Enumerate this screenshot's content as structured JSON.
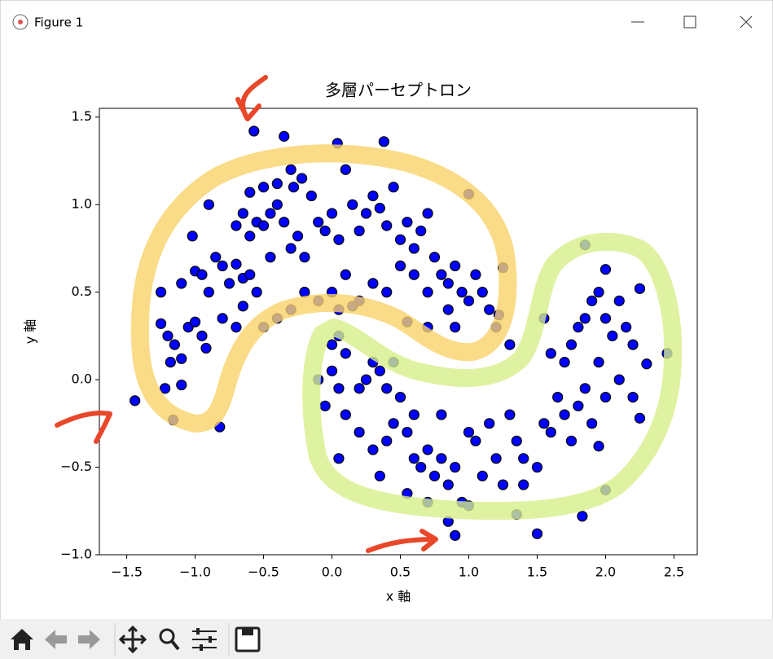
{
  "window_title": "Figure 1",
  "chart_data": {
    "type": "scatter",
    "title": "多層パーセプトロン",
    "x_label": "x 軸",
    "y_label": "y 軸",
    "color": "#0000ff",
    "edgecolor": "#000000",
    "xlim": [
      -1.7,
      2.67
    ],
    "ylim": [
      -1.0,
      1.55
    ],
    "xticks": [
      {
        "value": -1.5,
        "label": "−1.5"
      },
      {
        "value": -1,
        "label": "−1.0"
      },
      {
        "value": -0.5,
        "label": "−0.5"
      },
      {
        "value": 0,
        "label": "0.0"
      },
      0.5,
      {
        "value": 1,
        "label": "1.0"
      },
      1.5,
      {
        "value": 2,
        "label": "2.0"
      },
      2.5
    ],
    "yticks": [
      {
        "value": -1,
        "label": "−1.0"
      },
      {
        "value": -0.5,
        "label": "−0.5"
      },
      {
        "value": 0,
        "label": "0.0"
      },
      0.5,
      {
        "value": 1,
        "label": "1.0"
      },
      1.5
    ],
    "x": [
      -1.25,
      -1.2,
      -1.15,
      -1.18,
      -1.1,
      -1.05,
      -1.0,
      -0.95,
      -0.92,
      -1.1,
      -1.0,
      -0.95,
      -1.02,
      -0.9,
      -0.85,
      -0.8,
      -0.75,
      -0.7,
      -0.65,
      -0.6,
      -0.55,
      -0.7,
      -0.65,
      -0.6,
      -0.55,
      -0.5,
      -0.45,
      -0.4,
      -0.35,
      -0.3,
      -0.25,
      -0.2,
      -0.45,
      -0.5,
      -0.6,
      -0.4,
      -0.28,
      -0.22,
      -0.15,
      -0.1,
      -0.05,
      0,
      0.05,
      0.1,
      0.15,
      0.2,
      0.25,
      0.3,
      0.35,
      0.4,
      0.45,
      0.5,
      0.55,
      0.6,
      0.65,
      0.7,
      0.75,
      0.8,
      0.85,
      0.9,
      0.95,
      1.0,
      1.05,
      1.1,
      1.15,
      1.2,
      0.9,
      0.85,
      0.7,
      0.6,
      0.5,
      0.4,
      0.3,
      0.2,
      0.1,
      0,
      -0.1,
      -0.2,
      -0.3,
      -0.4,
      -0.5,
      -0.65,
      -0.7,
      -0.8,
      -0.82,
      -1.16,
      -1.44,
      -0.57,
      -0.35,
      0.04,
      0.38,
      -0.9,
      1.0,
      1.25,
      1.22,
      0.7,
      0.55,
      0.05,
      0.15,
      -1.22,
      -1.1,
      -1.25,
      -0.3,
      0,
      0.05,
      0.1,
      0,
      0.05,
      -0.05,
      -0.1,
      0.1,
      0.05,
      0.2,
      0.3,
      0.35,
      0.4,
      0.45,
      0.5,
      0.3,
      0.35,
      0.4,
      0.45,
      0.55,
      0.6,
      0.55,
      0.65,
      0.7,
      0.75,
      0.8,
      0.85,
      0.9,
      0.95,
      1.0,
      1.05,
      1.1,
      1.15,
      1.2,
      1.3,
      1.35,
      1.4,
      1.5,
      1.55,
      1.6,
      1.65,
      1.7,
      1.75,
      1.8,
      1.85,
      1.9,
      1.95,
      2.0,
      1.7,
      1.75,
      1.8,
      1.85,
      1.9,
      1.95,
      2.0,
      2.05,
      2.1,
      2.15,
      2.2,
      1.6,
      1.55,
      1.95,
      2.1,
      2.2,
      1.25,
      0.9,
      0.85,
      1.5,
      2.45,
      1.85,
      2.0,
      2.25,
      2.3,
      1.83,
      2.0,
      1.35,
      1.3,
      0.7,
      1.0,
      0.2,
      0.25,
      0.6,
      0.8,
      1.4,
      2.25
    ],
    "values": [
      0.32,
      0.25,
      0.2,
      0.1,
      0.12,
      0.3,
      0.33,
      0.25,
      0.18,
      0.55,
      0.62,
      0.6,
      0.82,
      0.5,
      0.7,
      0.65,
      0.55,
      0.66,
      0.58,
      0.6,
      0.5,
      0.88,
      0.95,
      0.82,
      0.9,
      0.88,
      0.95,
      1.0,
      0.9,
      0.75,
      0.82,
      0.7,
      0.7,
      1.1,
      1.07,
      1.12,
      1.1,
      1.15,
      1.05,
      0.9,
      0.85,
      0.95,
      0.8,
      1.2,
      1.0,
      0.85,
      0.95,
      1.05,
      0.98,
      0.88,
      1.1,
      0.8,
      0.9,
      0.75,
      0.85,
      0.95,
      0.7,
      0.6,
      0.55,
      0.65,
      0.5,
      0.45,
      0.6,
      0.5,
      0.4,
      0.3,
      0.3,
      0.4,
      0.5,
      0.6,
      0.65,
      0.5,
      0.55,
      0.45,
      0.6,
      0.5,
      0.45,
      0.5,
      0.4,
      0.35,
      0.3,
      0.42,
      0.3,
      0.35,
      -0.27,
      -0.23,
      -0.12,
      1.42,
      1.39,
      1.35,
      1.36,
      1.0,
      1.06,
      0.64,
      0.37,
      0.3,
      0.33,
      0.4,
      0.42,
      -0.05,
      -0.03,
      0.5,
      1.2,
      0.2,
      0.25,
      0.15,
      0.05,
      -0.05,
      -0.15,
      0,
      -0.2,
      -0.45,
      -0.3,
      0.1,
      0.05,
      -0.05,
      0.1,
      -0.1,
      -0.4,
      -0.55,
      -0.35,
      -0.25,
      -0.3,
      -0.45,
      -0.65,
      -0.5,
      -0.4,
      -0.55,
      -0.45,
      -0.6,
      -0.5,
      -0.7,
      -0.3,
      -0.35,
      -0.55,
      -0.25,
      -0.45,
      -0.2,
      -0.35,
      -0.45,
      -0.5,
      -0.25,
      -0.3,
      -0.1,
      -0.2,
      -0.35,
      -0.15,
      -0.05,
      -0.25,
      -0.38,
      -0.1,
      0.1,
      0.2,
      0.3,
      0.35,
      0.45,
      0.5,
      0.35,
      0.25,
      0.45,
      0.3,
      0.2,
      0.15,
      0.35,
      0.1,
      0,
      -0.1,
      -0.6,
      -0.89,
      -0.81,
      -0.88,
      0.15,
      0.77,
      0.63,
      0.52,
      0.09,
      -0.78,
      -0.63,
      -0.77,
      0.2,
      -0.7,
      -0.72,
      -0.05,
      0,
      -0.2,
      -0.2,
      -0.6,
      -0.22
    ]
  }
}
